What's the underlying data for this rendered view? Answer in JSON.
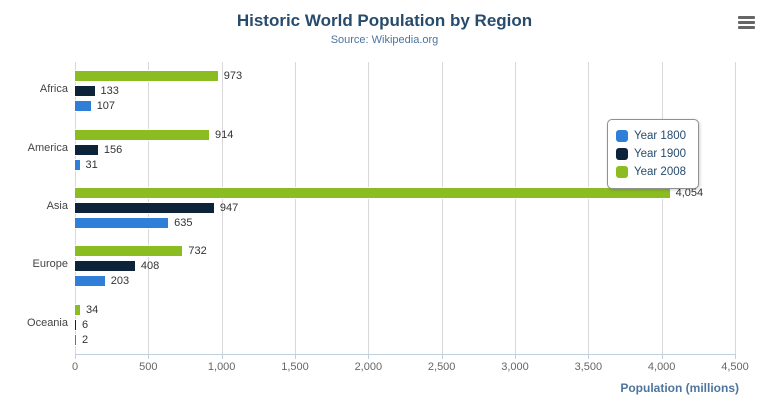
{
  "chart_data": {
    "type": "bar",
    "title": "Historic World Population by Region",
    "subtitle": "Source: Wikipedia.org",
    "categories": [
      "Africa",
      "America",
      "Asia",
      "Europe",
      "Oceania"
    ],
    "series": [
      {
        "name": "Year 1800",
        "color": "#2f7ed8",
        "values": [
          107,
          31,
          635,
          203,
          2
        ]
      },
      {
        "name": "Year 1900",
        "color": "#0d233a",
        "values": [
          133,
          156,
          947,
          408,
          6
        ]
      },
      {
        "name": "Year 2008",
        "color": "#8bbc21",
        "values": [
          973,
          914,
          4054,
          732,
          34
        ]
      }
    ],
    "xlabel": "Population (millions)",
    "ylabel": "",
    "x_ticks": [
      "0",
      "500",
      "1,000",
      "1,500",
      "2,000",
      "2,500",
      "3,000",
      "3,500",
      "4,000",
      "4,500"
    ],
    "xlim": [
      0,
      4500
    ],
    "grid": true,
    "legend_position": "right",
    "bar_order_top_to_bottom": [
      "Year 2008",
      "Year 1900",
      "Year 1800"
    ]
  }
}
